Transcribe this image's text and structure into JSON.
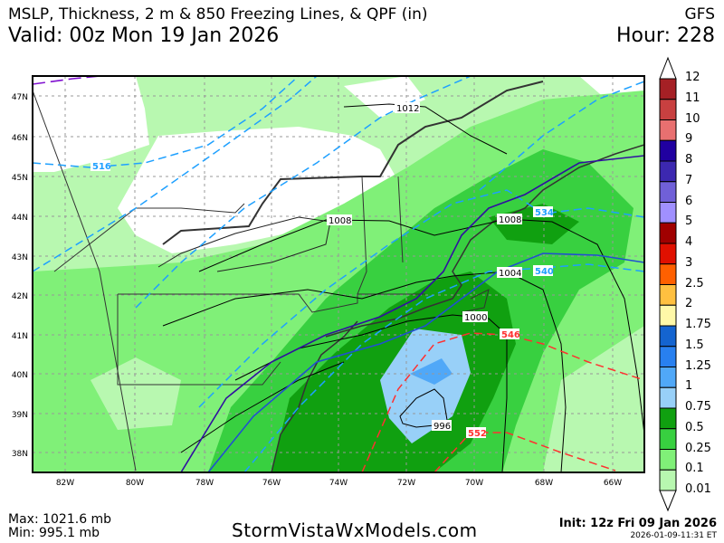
{
  "header": {
    "title": "MSLP, Thickness, 2 m & 850 Freezing Lines, & QPF (in)",
    "model": "GFS",
    "valid": "Valid: 00z Mon 19 Jan 2026",
    "hour": "Hour: 228"
  },
  "map": {
    "lat_labels": [
      "47N",
      "46N",
      "45N",
      "44N",
      "43N",
      "42N",
      "41N",
      "40N",
      "39N",
      "38N"
    ],
    "lon_labels": [
      "82W",
      "80W",
      "78W",
      "76W",
      "74W",
      "72W",
      "70W",
      "68W",
      "66W"
    ],
    "isobar_labels": [
      "1012",
      "1008",
      "1008",
      "1004",
      "1000",
      "996"
    ],
    "thickness_labels": {
      "blue": [
        "516",
        "534",
        "540"
      ],
      "red": [
        "546",
        "552"
      ]
    },
    "colors": {
      "isobar": "#000000",
      "thickness_cold": "#1ea0ff",
      "thickness_warm": "#ff3030",
      "freezing_line": "#3010a0"
    }
  },
  "colorbar": {
    "labels": [
      "12",
      "11",
      "10",
      "9",
      "8",
      "7",
      "6",
      "5",
      "4",
      "3",
      "2.5",
      "2",
      "1.75",
      "1.5",
      "1.25",
      "1",
      "0.75",
      "0.5",
      "0.25",
      "0.1",
      "0.01"
    ],
    "colors": [
      "#a52025",
      "#c84040",
      "#e87070",
      "#2000a0",
      "#3c28b0",
      "#7060d8",
      "#a090ff",
      "#a00000",
      "#e01000",
      "#ff6000",
      "#ffc040",
      "#fff8a8",
      "#1464d0",
      "#2880f0",
      "#50a8f8",
      "#98d0f8",
      "#10a010",
      "#38d040",
      "#80f078",
      "#b8f8b0"
    ]
  },
  "footer": {
    "max": "Max: 1021.6 mb",
    "min": "Min: 995.1 mb",
    "site": "StormVistaWxModels.com",
    "init": "Init: 12z Fri 09 Jan 2026",
    "stamp": "2026-01-09-11:31 ET"
  }
}
